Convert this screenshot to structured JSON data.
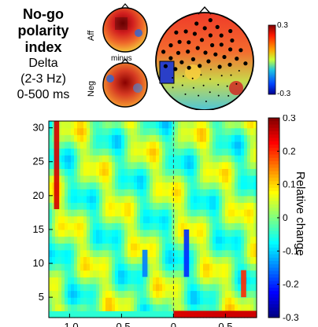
{
  "title": {
    "line1": "No-go",
    "line2": "polarity",
    "line3": "index",
    "band": "Delta",
    "freq": "(2-3 Hz)",
    "window": "0-500 ms"
  },
  "topomaps": {
    "aff_label": "Aff",
    "minus_label": "minus",
    "neg_label": "Neg",
    "colorbar_max": "0.3",
    "colorbar_min": "-0.3"
  },
  "chart_data": {
    "type": "heatmap",
    "x_ticks": [
      "-1.0",
      "-0.5",
      "0",
      "0.5"
    ],
    "y_ticks": [
      "5",
      "10",
      "15",
      "20",
      "25",
      "30"
    ],
    "xlim": [
      -1.2,
      0.8
    ],
    "ylim": [
      2,
      31
    ],
    "xlabel": "",
    "ylabel": "",
    "colorbar": {
      "label": "Relative change",
      "range": [
        -0.3,
        0.3
      ],
      "ticks": [
        "0.3",
        "0.2",
        "0.1",
        "0",
        "-0.1",
        "-0.2",
        "-0.3"
      ]
    },
    "event_marker_x": 0,
    "features": [
      {
        "time": [
          0.0,
          0.8
        ],
        "freq": [
          2,
          3
        ],
        "value": 0.25
      },
      {
        "time": [
          -1.15,
          -1.1
        ],
        "freq": [
          18,
          31
        ],
        "value": 0.25
      },
      {
        "time": [
          0.65,
          0.7
        ],
        "freq": [
          5,
          9
        ],
        "value": 0.2
      },
      {
        "time": [
          0.1,
          0.15
        ],
        "freq": [
          8,
          15
        ],
        "value": -0.2
      },
      {
        "time": [
          -0.3,
          -0.25
        ],
        "freq": [
          8,
          12
        ],
        "value": -0.15
      }
    ]
  }
}
